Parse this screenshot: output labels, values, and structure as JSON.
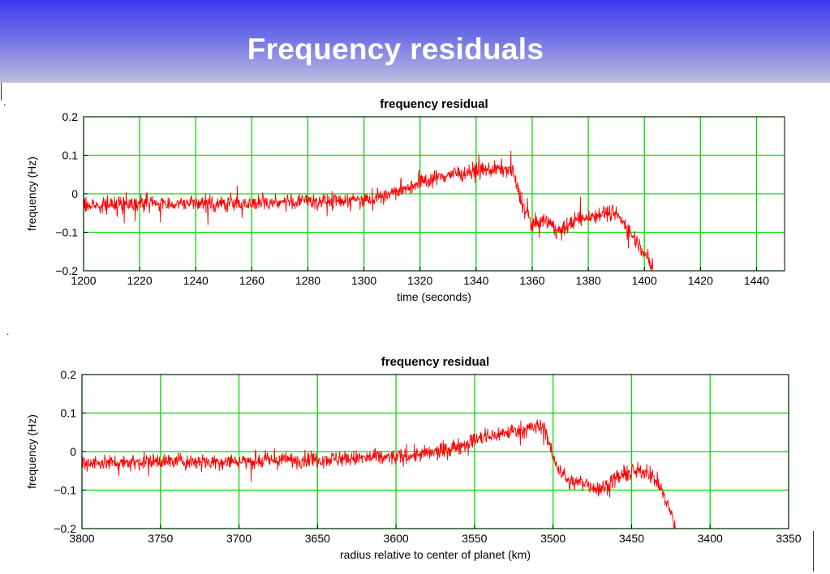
{
  "slide": {
    "title": "Frequency residuals",
    "dot_top": ".",
    "dot_mid": "."
  },
  "colors": {
    "series": "#ff0000",
    "grid": "#00dd00",
    "banner_top": "#3a3af2",
    "banner_bottom": "#bdbde0"
  },
  "chart_data": [
    {
      "type": "line",
      "title": "frequency residual",
      "xlabel": "time (seconds)",
      "ylabel": "frequency (Hz)",
      "xlim": [
        1200,
        1450
      ],
      "ylim": [
        -0.2,
        0.2
      ],
      "xticks": [
        1200,
        1220,
        1240,
        1260,
        1280,
        1300,
        1320,
        1340,
        1360,
        1380,
        1400,
        1420,
        1440
      ],
      "yticks": [
        0.2,
        0.1,
        0,
        -0.1,
        -0.2
      ],
      "ytick_labels": [
        "0.2",
        "0.1",
        "0",
        "−0.1",
        "−0.2"
      ],
      "grid": true,
      "series": [
        {
          "x": [
            1200,
            1220,
            1240,
            1260,
            1280,
            1300,
            1310,
            1320,
            1330,
            1340,
            1350,
            1353,
            1356,
            1360,
            1365,
            1370,
            1375,
            1380,
            1385,
            1390,
            1395,
            1400,
            1403
          ],
          "y": [
            -0.03,
            -0.025,
            -0.025,
            -0.025,
            -0.02,
            -0.015,
            0.0,
            0.03,
            0.05,
            0.06,
            0.065,
            0.06,
            -0.02,
            -0.08,
            -0.07,
            -0.1,
            -0.07,
            -0.06,
            -0.05,
            -0.05,
            -0.1,
            -0.15,
            -0.2
          ],
          "noise": 0.03
        }
      ]
    },
    {
      "type": "line",
      "title": "frequency residual",
      "xlabel": "radius relative to center of planet (km)",
      "ylabel": "frequency (Hz)",
      "xlim": [
        3800,
        3350
      ],
      "ylim": [
        -0.2,
        0.2
      ],
      "xticks": [
        3800,
        3750,
        3700,
        3650,
        3600,
        3550,
        3500,
        3450,
        3400,
        3350
      ],
      "yticks": [
        0.2,
        0.1,
        0,
        -0.1,
        -0.2
      ],
      "ytick_labels": [
        "0.2",
        "0.1",
        "0",
        "−0.1",
        "−0.2"
      ],
      "grid": true,
      "series": [
        {
          "x": [
            3800,
            3750,
            3700,
            3650,
            3600,
            3570,
            3550,
            3530,
            3510,
            3505,
            3500,
            3490,
            3480,
            3470,
            3460,
            3450,
            3440,
            3432,
            3425,
            3422
          ],
          "y": [
            -0.03,
            -0.025,
            -0.025,
            -0.02,
            -0.015,
            0.0,
            0.03,
            0.05,
            0.065,
            0.06,
            -0.02,
            -0.08,
            -0.08,
            -0.1,
            -0.07,
            -0.055,
            -0.05,
            -0.09,
            -0.16,
            -0.2
          ],
          "noise": 0.03
        }
      ]
    }
  ]
}
